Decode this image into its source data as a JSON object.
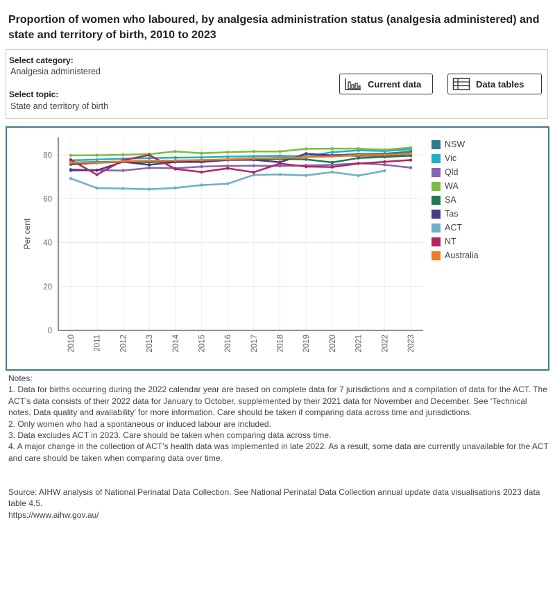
{
  "title": "Proportion of women who laboured, by analgesia administration status (analgesia administered) and state and territory of birth, 2010 to 2023",
  "selectors": {
    "category_label": "Select category:",
    "category_value": "Analgesia administered",
    "topic_label": "Select topic:",
    "topic_value": "State and territory of birth"
  },
  "buttons": {
    "current_data": "Current data",
    "data_tables": "Data tables"
  },
  "chart_data": {
    "type": "line",
    "ylabel": "Per cent",
    "xlabel": "",
    "ylim": [
      0,
      88
    ],
    "yticks": [
      0,
      20,
      40,
      60,
      80
    ],
    "categories": [
      "2010",
      "2011",
      "2012",
      "2013",
      "2014",
      "2015",
      "2016",
      "2017",
      "2018",
      "2019",
      "2020",
      "2021",
      "2022",
      "2023"
    ],
    "legend_position": "right",
    "series": [
      {
        "name": "NSW",
        "color": "#2a7c8c",
        "values": [
          76.6,
          76.8,
          77.0,
          77.2,
          77.4,
          77.6,
          77.9,
          78.3,
          78.8,
          79.3,
          79.9,
          80.4,
          80.6,
          81.5
        ]
      },
      {
        "name": "Vic",
        "color": "#1bb1c2",
        "values": [
          77.6,
          77.9,
          78.3,
          78.6,
          78.8,
          78.9,
          79.2,
          79.4,
          79.6,
          79.3,
          81.3,
          82.1,
          81.8,
          82.6
        ]
      },
      {
        "name": "Qld",
        "color": "#8a63b5",
        "values": [
          73.4,
          73.1,
          72.9,
          74.1,
          73.9,
          74.7,
          75.0,
          75.1,
          75.0,
          75.2,
          75.5,
          76.2,
          75.6,
          74.2
        ]
      },
      {
        "name": "WA",
        "color": "#7dbb42",
        "values": [
          79.8,
          79.9,
          80.1,
          80.4,
          81.6,
          80.8,
          81.3,
          81.6,
          81.6,
          82.8,
          82.9,
          82.9,
          82.4,
          83.3
        ]
      },
      {
        "name": "SA",
        "color": "#1e7a50",
        "values": [
          75.7,
          76.4,
          76.9,
          76.7,
          77.2,
          77.3,
          77.9,
          77.8,
          78.2,
          78.0,
          76.6,
          78.6,
          79.1,
          79.7
        ]
      },
      {
        "name": "Tas",
        "color": "#4a3a85",
        "values": [
          73.0,
          73.0,
          76.9,
          75.5,
          76.8,
          76.8,
          77.7,
          77.8,
          76.7,
          80.6,
          79.8,
          79.6,
          79.8,
          80.6
        ]
      },
      {
        "name": "ACT",
        "color": "#6ab0c6",
        "values": [
          69.3,
          64.9,
          64.7,
          64.4,
          65.0,
          66.3,
          66.9,
          70.9,
          71.1,
          70.7,
          72.2,
          70.6,
          72.8,
          null
        ]
      },
      {
        "name": "NT",
        "color": "#b4255c",
        "values": [
          77.8,
          71.0,
          77.6,
          80.0,
          73.6,
          72.2,
          73.9,
          72.1,
          76.1,
          74.7,
          74.5,
          76.1,
          76.9,
          77.7
        ]
      },
      {
        "name": "Australia",
        "color": "#ef7a29",
        "values": [
          76.5,
          76.5,
          77.1,
          77.4,
          77.5,
          77.7,
          78.0,
          78.4,
          78.6,
          79.0,
          79.3,
          79.9,
          80.0,
          80.6
        ]
      }
    ]
  },
  "notes": [
    "Notes:",
    "1. Data for births occurring during the 2022 calendar year are based on complete data for 7 jurisdictions and a compilation of data for the ACT. The ACT’s data consists of their 2022 data for January to October, supplemented by their 2021 data for November and December. See ‘Technical notes, Data quality and availability’ for more information. Care should be taken if comparing data across time and jurisdictions.",
    "2. Only women who had a spontaneous or induced labour are included.",
    "3. Data excludes ACT in 2023. Care should be taken when comparing data across time.",
    "4. A major change in the collection of ACT’s health data was implemented in late 2022. As a result, some data are currently unavailable for the ACT and care should be taken when comparing data over time."
  ],
  "source": {
    "text": "Source: AIHW analysis of National Perinatal Data Collection. See National Perinatal Data Collection annual update data visualisations 2023 data table 4.5.",
    "url": "https://www.aihw.gov.au/"
  }
}
